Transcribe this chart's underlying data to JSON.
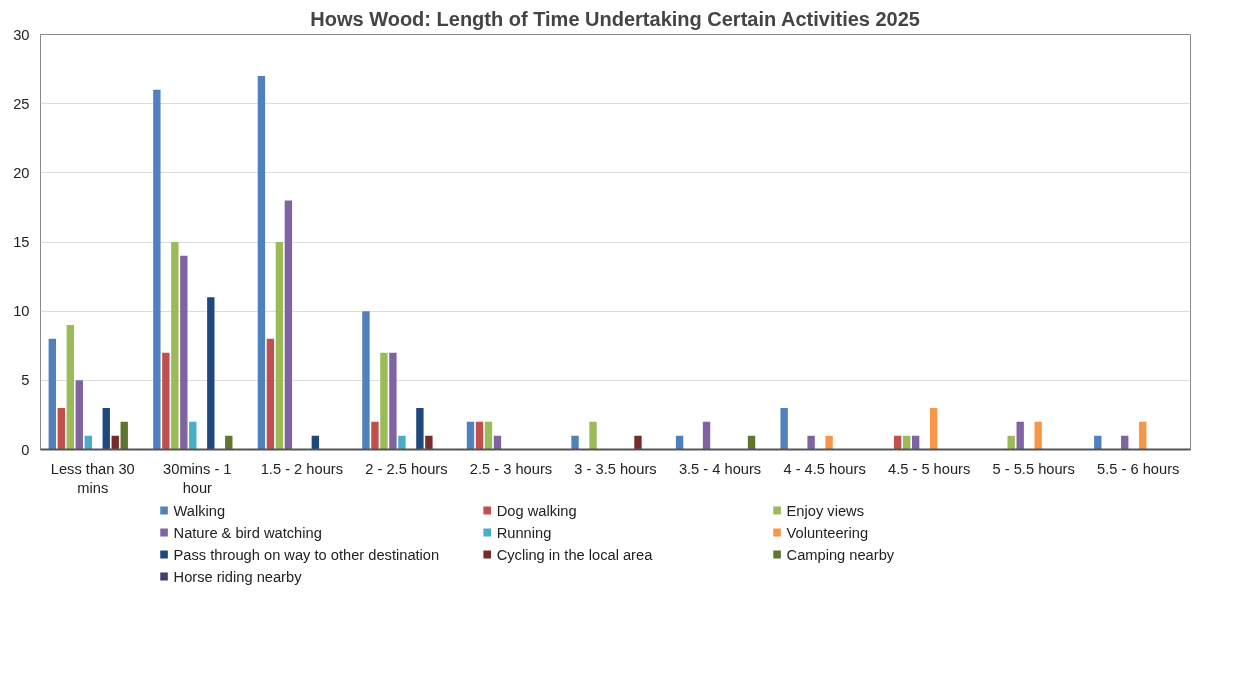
{
  "chart_data": {
    "type": "bar",
    "title": "Hows Wood: Length of Time Undertaking Certain Activities 2025",
    "categories": [
      "Less than 30 mins",
      "30mins - 1 hour",
      "1.5 - 2 hours",
      "2 - 2.5 hours",
      "2.5 - 3 hours",
      "3 - 3.5 hours",
      "3.5 - 4 hours",
      "4 - 4.5 hours",
      "4.5 - 5 hours",
      "5 - 5.5 hours",
      "5.5 - 6 hours"
    ],
    "series": [
      {
        "name": "Walking",
        "color": "#4f81bd",
        "values": [
          8,
          26,
          27,
          10,
          2,
          1,
          1,
          3,
          0,
          0,
          1
        ]
      },
      {
        "name": "Dog walking",
        "color": "#c0504d",
        "values": [
          3,
          7,
          8,
          2,
          2,
          0,
          0,
          0,
          1,
          0,
          0
        ]
      },
      {
        "name": "Enjoy views",
        "color": "#9bbb59",
        "values": [
          9,
          15,
          15,
          7,
          2,
          2,
          0,
          0,
          1,
          1,
          0
        ]
      },
      {
        "name": "Nature & bird watching",
        "color": "#8064a2",
        "values": [
          5,
          14,
          18,
          7,
          1,
          0,
          2,
          1,
          1,
          2,
          1
        ]
      },
      {
        "name": "Running",
        "color": "#4bacc6",
        "values": [
          1,
          2,
          0,
          1,
          0,
          0,
          0,
          0,
          0,
          0,
          0
        ]
      },
      {
        "name": "Volunteering",
        "color": "#f79646",
        "values": [
          0,
          0,
          0,
          0,
          0,
          0,
          0,
          1,
          3,
          2,
          2
        ]
      },
      {
        "name": "Pass through on way to other destination",
        "color": "#1f497d",
        "values": [
          3,
          11,
          1,
          3,
          0,
          0,
          0,
          0,
          0,
          0,
          0
        ]
      },
      {
        "name": "Cycling in the local area",
        "color": "#772c2a",
        "values": [
          1,
          0,
          0,
          1,
          0,
          1,
          0,
          0,
          0,
          0,
          0
        ]
      },
      {
        "name": "Camping nearby",
        "color": "#5f7530",
        "values": [
          2,
          1,
          0,
          0,
          0,
          0,
          1,
          0,
          0,
          0,
          0
        ]
      },
      {
        "name": "Horse riding nearby",
        "color": "#3f3f70",
        "values": [
          0,
          0,
          0,
          0,
          0,
          0,
          0,
          0,
          0,
          0,
          0
        ]
      }
    ],
    "ylim": [
      0,
      30
    ],
    "yticks": [
      0,
      5,
      10,
      15,
      20,
      25,
      30
    ],
    "grid": "y",
    "legend": "bottom"
  }
}
